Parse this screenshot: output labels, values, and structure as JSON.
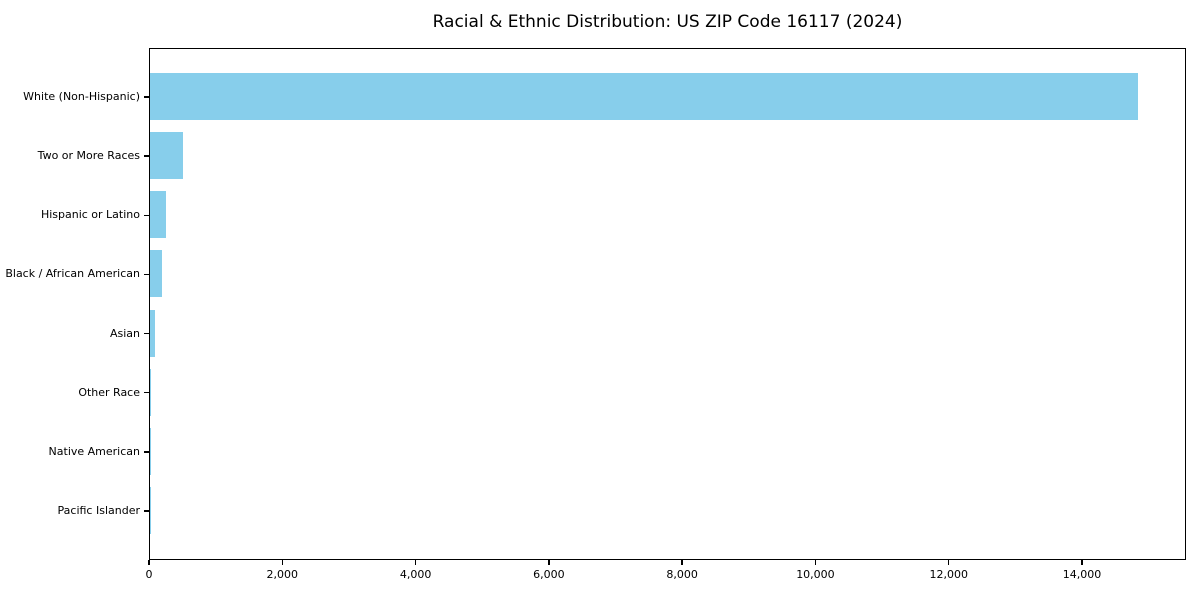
{
  "chart_data": {
    "type": "bar",
    "orientation": "horizontal",
    "title": "Racial & Ethnic Distribution: US ZIP Code 16117 (2024)",
    "categories": [
      "White (Non-Hispanic)",
      "Two or More Races",
      "Hispanic or Latino",
      "Black / African American",
      "Asian",
      "Other Race",
      "Native American",
      "Pacific Islander"
    ],
    "values": [
      14820,
      490,
      245,
      180,
      68,
      15,
      4,
      2
    ],
    "xlabel": "",
    "ylabel": "",
    "xlim": [
      0,
      15560
    ],
    "x_ticks": [
      {
        "value": 0,
        "label": "0"
      },
      {
        "value": 2000,
        "label": "2,000"
      },
      {
        "value": 4000,
        "label": "4,000"
      },
      {
        "value": 6000,
        "label": "6,000"
      },
      {
        "value": 8000,
        "label": "8,000"
      },
      {
        "value": 10000,
        "label": "10,000"
      },
      {
        "value": 12000,
        "label": "12,000"
      },
      {
        "value": 14000,
        "label": "14,000"
      }
    ],
    "grid": false,
    "legend": "none",
    "bar_color": "#87CEEB",
    "spine_color": "#000000",
    "text_color": "#000000",
    "background_color": "#ffffff"
  }
}
